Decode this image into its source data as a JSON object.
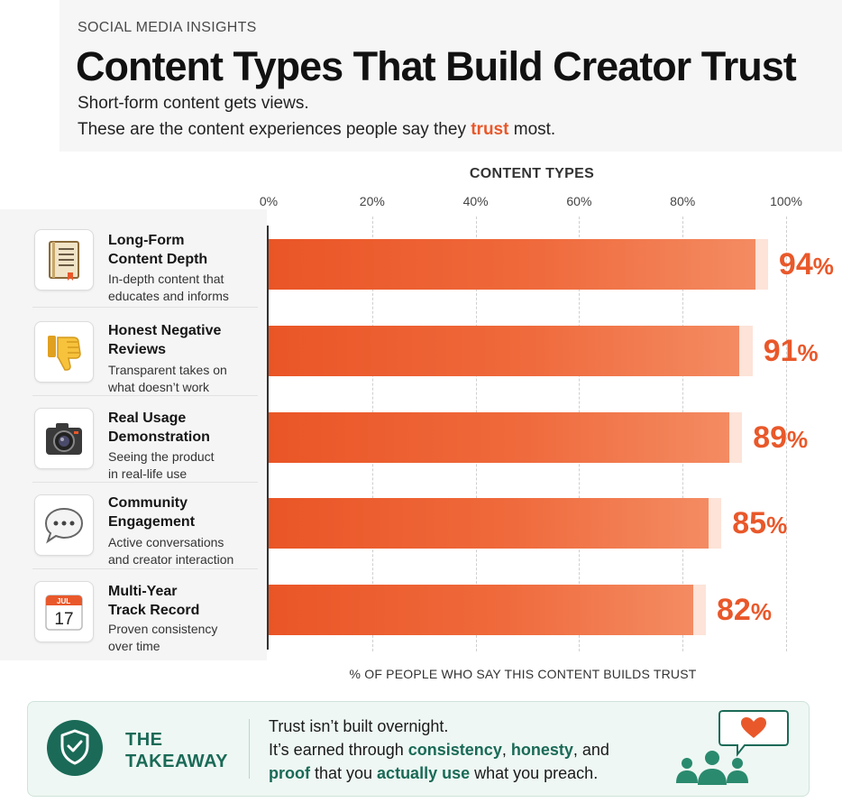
{
  "header": {
    "kicker": "SOCIAL MEDIA INSIGHTS",
    "title": "Content Types That Build Creator Trust",
    "subtitle_line1": "Short-form content gets views.",
    "subtitle_line2_before": "These are the content experiences people say they ",
    "subtitle_line2_highlight": "trust",
    "subtitle_line2_after": " most."
  },
  "chart_data": {
    "type": "bar",
    "orientation": "horizontal",
    "title": "CONTENT TYPES",
    "xlabel": "% OF PEOPLE WHO SAY THIS CONTENT BUILDS TRUST",
    "xlim": [
      0,
      100
    ],
    "ticks": [
      "0%",
      "20%",
      "40%",
      "60%",
      "80%",
      "100%"
    ],
    "grid": true,
    "categories": [
      "Long-Form Content Depth",
      "Honest Negative Reviews",
      "Real Usage Demonstration",
      "Community Engagement",
      "Multi-Year Track Record"
    ],
    "values": [
      94,
      91,
      89,
      85,
      82
    ],
    "value_labels": [
      "94",
      "91",
      "89",
      "85",
      "82"
    ],
    "percent_symbol": "%",
    "rows": [
      {
        "title_line1": "Long-Form",
        "title_line2": "Content Depth",
        "desc_line1": "In-depth content that",
        "desc_line2": "educates and informs",
        "icon": "book-icon"
      },
      {
        "title_line1": "Honest Negative",
        "title_line2": "Reviews",
        "desc_line1": "Transparent takes on",
        "desc_line2": "what doesn’t work",
        "icon": "thumbs-down-icon"
      },
      {
        "title_line1": "Real Usage",
        "title_line2": "Demonstration",
        "desc_line1": "Seeing the product",
        "desc_line2": "in real-life use",
        "icon": "camera-icon"
      },
      {
        "title_line1": "Community",
        "title_line2": "Engagement",
        "desc_line1": "Active conversations",
        "desc_line2": "and creator interaction",
        "icon": "speech-bubble-icon"
      },
      {
        "title_line1": "Multi-Year",
        "title_line2": "Track Record",
        "desc_line1": "Proven consistency",
        "desc_line2": "over time",
        "icon": "calendar-icon"
      }
    ],
    "bar_color": "#ea5526",
    "track_color": "#fde3d8"
  },
  "icons": {
    "calendar_month": "JUL",
    "calendar_day": "17"
  },
  "takeaway": {
    "label_line1": "THE",
    "label_line2": "TAKEAWAY",
    "line1": "Trust isn’t built overnight.",
    "line2_before": "It’s earned through ",
    "line2_hl1": "consistency",
    "line2_mid": ", ",
    "line2_hl2": "honesty",
    "line2_after": ", and",
    "line3_hl1": "proof",
    "line3_mid": " that you ",
    "line3_hl2": "actually use",
    "line3_after": " what you preach.",
    "color": "#1a6a57"
  }
}
